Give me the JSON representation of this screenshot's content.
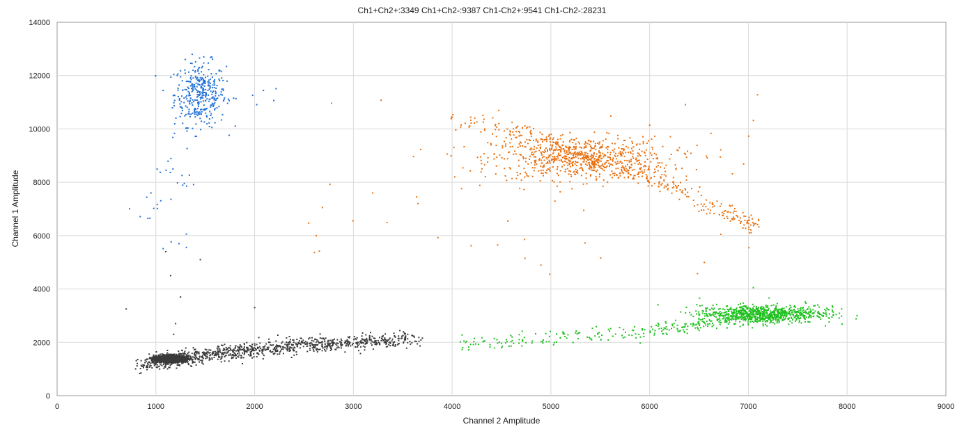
{
  "chart_data": {
    "type": "scatter",
    "title": "Ch1+Ch2+:3349  Ch1+Ch2-:9387  Ch1-Ch2+:9541  Ch1-Ch2-:28231",
    "xlabel": "Channel 2 Amplitude",
    "ylabel": "Channel 1 Amplitude",
    "xlim": [
      0,
      9000
    ],
    "ylim": [
      0,
      14000
    ],
    "xticks": [
      0,
      1000,
      2000,
      3000,
      4000,
      5000,
      6000,
      7000,
      8000,
      9000
    ],
    "yticks": [
      0,
      2000,
      4000,
      6000,
      8000,
      10000,
      12000,
      14000
    ],
    "grid": true,
    "legend": "none",
    "clusters": [
      {
        "category": "Ch1+Ch2+",
        "color": "#1f6fd6",
        "count": 3349,
        "core_center": [
          1450,
          11300
        ],
        "core_spread": [
          130,
          600
        ],
        "tail": [
          [
            1200,
            9800
          ],
          [
            1050,
            8500
          ],
          [
            950,
            7200
          ],
          [
            1300,
            8000
          ],
          [
            1800,
            11200
          ],
          [
            2100,
            11200
          ],
          [
            830,
            6600
          ],
          [
            1250,
            5900
          ]
        ]
      },
      {
        "category": "Ch1+Ch2-",
        "color": "#e8700f",
        "count": 9387,
        "core_center": [
          5300,
          8900
        ],
        "core_spread": [
          450,
          400
        ],
        "band": [
          [
            4000,
            10300
          ],
          [
            4700,
            9900
          ],
          [
            5300,
            9000
          ],
          [
            5900,
            8300
          ],
          [
            6300,
            7700
          ],
          [
            6800,
            6800
          ],
          [
            7100,
            6300
          ]
        ],
        "scatter_range": {
          "x": [
            2500,
            7300
          ],
          "y": [
            4500,
            11500
          ]
        }
      },
      {
        "category": "Ch1-Ch2+",
        "color": "#1ec01e",
        "count": 9541,
        "core_center": [
          7100,
          3050
        ],
        "core_spread": [
          300,
          170
        ],
        "band": [
          [
            4100,
            1950
          ],
          [
            5000,
            2100
          ],
          [
            6000,
            2400
          ],
          [
            6500,
            2700
          ],
          [
            7000,
            3000
          ],
          [
            7500,
            3150
          ],
          [
            7900,
            3200
          ]
        ],
        "outliers": [
          [
            8100,
            3000
          ],
          [
            7050,
            4050
          ]
        ]
      },
      {
        "category": "Ch1-Ch2-",
        "color": "#3a3a3a",
        "count": 28231,
        "core_center": [
          1150,
          1380
        ],
        "core_spread": [
          70,
          60
        ],
        "band": [
          [
            900,
            1150
          ],
          [
            1200,
            1380
          ],
          [
            1600,
            1550
          ],
          [
            2000,
            1700
          ],
          [
            2500,
            1900
          ],
          [
            3000,
            2000
          ],
          [
            3600,
            2100
          ]
        ],
        "outliers": [
          [
            700,
            3250
          ],
          [
            1250,
            3700
          ],
          [
            1200,
            2700
          ],
          [
            1180,
            2300
          ],
          [
            1450,
            5100
          ],
          [
            2000,
            3300
          ],
          [
            1150,
            4500
          ],
          [
            1100,
            5400
          ]
        ]
      }
    ]
  }
}
